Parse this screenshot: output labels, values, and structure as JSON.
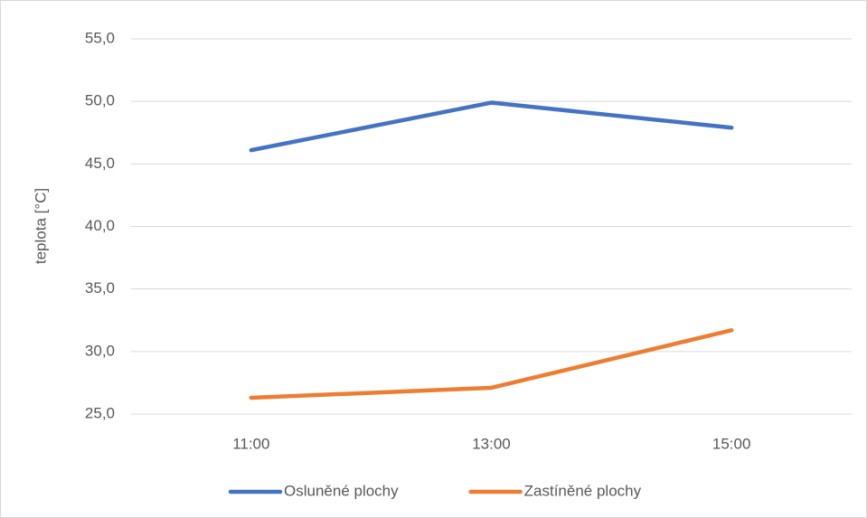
{
  "chart_data": {
    "type": "line",
    "y_label": "teplota [°C]",
    "categories": [
      "11:00",
      "13:00",
      "15:00"
    ],
    "series": [
      {
        "name": "Osluněné plochy",
        "color": "#4472c4",
        "values": [
          46.1,
          49.9,
          47.9
        ]
      },
      {
        "name": "Zastíněné plochy",
        "color": "#ed7d31",
        "values": [
          26.3,
          27.1,
          31.7
        ]
      }
    ],
    "ylim": [
      25,
      55
    ],
    "yticks": [
      {
        "value": 25,
        "label": "25,0"
      },
      {
        "value": 30,
        "label": "30,0"
      },
      {
        "value": 35,
        "label": "35,0"
      },
      {
        "value": 40,
        "label": "40,0"
      },
      {
        "value": 45,
        "label": "45,0"
      },
      {
        "value": 50,
        "label": "50,0"
      },
      {
        "value": 55,
        "label": "55,0"
      }
    ],
    "grid": true,
    "legend": "bottom"
  }
}
